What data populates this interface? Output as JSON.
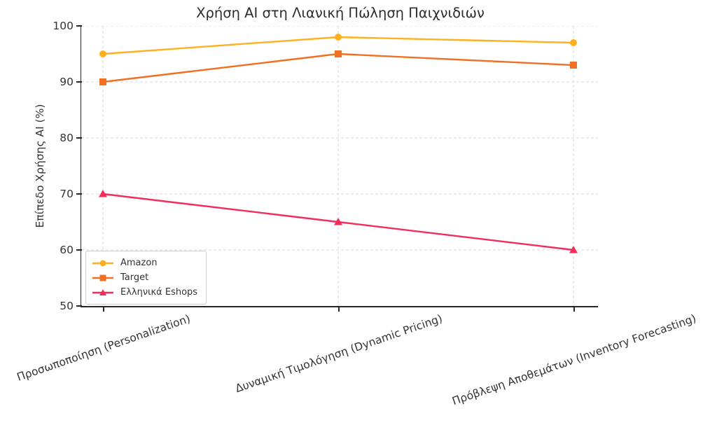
{
  "chart_data": {
    "type": "line",
    "title": "Χρήση AI στη Λιανική Πώληση Παιχνιδιών",
    "ylabel": "Επίπεδο Χρήσης AI (%)",
    "xlabel": "",
    "categories": [
      "Προσωποποίηση (Personalization)",
      "Δυναμική Τιμολόγηση (Dynamic Pricing)",
      "Πρόβλεψη Αποθεμάτων (Inventory Forecasting)"
    ],
    "series": [
      {
        "name": "Amazon",
        "marker": "circle",
        "color": "#FFB021",
        "values": [
          95,
          98,
          97
        ]
      },
      {
        "name": "Target",
        "marker": "square",
        "color": "#F07023",
        "values": [
          90,
          95,
          93
        ]
      },
      {
        "name": "Ελληνικά Eshops",
        "marker": "triangle",
        "color": "#F22C5B",
        "values": [
          70,
          65,
          60
        ]
      }
    ],
    "ylim": [
      50,
      100
    ],
    "yticks": [
      50,
      60,
      70,
      80,
      90,
      100
    ],
    "grid": true,
    "legend_position": "lower left",
    "x_tick_rotation_deg": 19
  },
  "colors": {
    "background": "#ffffff",
    "grid": "#d9d9d9",
    "axis": "#262626",
    "title_text": "#2d2d2d",
    "tick_text": "#333333",
    "legend_border": "#cccccc"
  }
}
